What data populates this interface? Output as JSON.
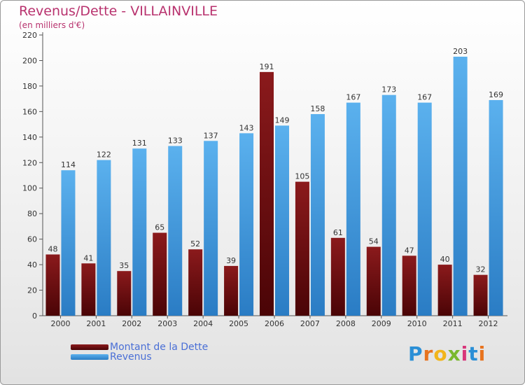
{
  "title": "Revenus/Dette - VILLAINVILLE",
  "subtitle": "(en milliers d'€)",
  "logo": {
    "text": "Proxiti",
    "letters": [
      "P",
      "r",
      "o",
      "x",
      "i",
      "t",
      "i"
    ]
  },
  "colors": {
    "title": "#b8326e",
    "dette": "#7a0e10",
    "revenus": "#4aa3e6",
    "legend_text": "#4a6fd6",
    "axis": "#555555"
  },
  "chart_data": {
    "type": "bar",
    "categories": [
      "2000",
      "2001",
      "2002",
      "2003",
      "2004",
      "2005",
      "2006",
      "2007",
      "2008",
      "2009",
      "2010",
      "2011",
      "2012"
    ],
    "series": [
      {
        "name": "Montant de la Dette",
        "values": [
          48,
          41,
          35,
          65,
          52,
          39,
          191,
          105,
          61,
          54,
          47,
          40,
          32
        ]
      },
      {
        "name": "Revenus",
        "values": [
          114,
          122,
          131,
          133,
          137,
          143,
          149,
          158,
          167,
          173,
          167,
          203,
          169
        ]
      }
    ],
    "yticks": [
      0,
      20,
      40,
      60,
      80,
      100,
      120,
      140,
      160,
      180,
      200,
      220
    ],
    "ylim": [
      0,
      220
    ],
    "grid": false,
    "legend_position": "bottom-left"
  }
}
